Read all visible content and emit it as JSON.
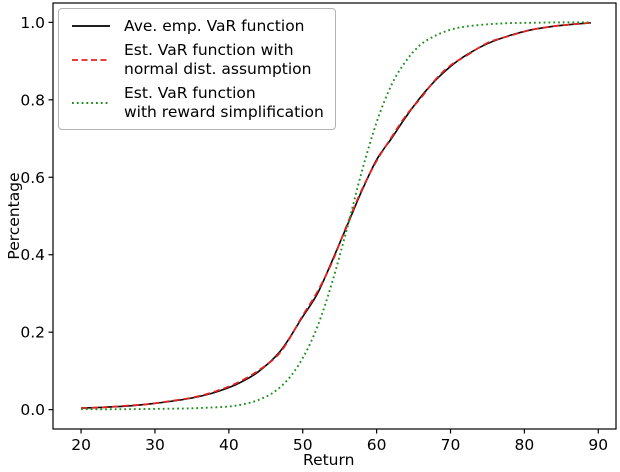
{
  "figure": {
    "background": "#ffffff",
    "frame_color": "#000000"
  },
  "chart_data": {
    "type": "line",
    "title": "",
    "xlabel": "Return",
    "ylabel": "Percentage",
    "xlim": [
      16.2,
      92.4
    ],
    "ylim": [
      -0.05,
      1.05
    ],
    "x_ticks": [
      "20",
      "30",
      "40",
      "50",
      "60",
      "70",
      "80",
      "90"
    ],
    "y_ticks": [
      "0.0",
      "0.2",
      "0.4",
      "0.6",
      "0.8",
      "1.0"
    ],
    "grid": false,
    "legend_position": "upper left",
    "series": [
      {
        "id": "ave-emp-var",
        "name": "Ave. emp. VaR function",
        "color": "#000000",
        "style": "solid",
        "points": [
          [
            20,
            0.004
          ],
          [
            23,
            0.006
          ],
          [
            26,
            0.009
          ],
          [
            29,
            0.014
          ],
          [
            32,
            0.021
          ],
          [
            35,
            0.03
          ],
          [
            38,
            0.044
          ],
          [
            41,
            0.065
          ],
          [
            44,
            0.098
          ],
          [
            47,
            0.152
          ],
          [
            50,
            0.24
          ],
          [
            52,
            0.3
          ],
          [
            54,
            0.385
          ],
          [
            56,
            0.475
          ],
          [
            58,
            0.565
          ],
          [
            60,
            0.645
          ],
          [
            62,
            0.7
          ],
          [
            64,
            0.757
          ],
          [
            66,
            0.808
          ],
          [
            68,
            0.851
          ],
          [
            70,
            0.886
          ],
          [
            72,
            0.914
          ],
          [
            75,
            0.945
          ],
          [
            78,
            0.966
          ],
          [
            81,
            0.981
          ],
          [
            84,
            0.99
          ],
          [
            86,
            0.994
          ],
          [
            89,
            0.999
          ]
        ]
      },
      {
        "id": "est-var-normal",
        "name": "Est. VaR function with normal dist. assumption",
        "color": "#e32222",
        "style": "dashed",
        "points": [
          [
            20,
            0.004
          ],
          [
            23,
            0.006
          ],
          [
            26,
            0.01
          ],
          [
            29,
            0.014
          ],
          [
            32,
            0.022
          ],
          [
            35,
            0.031
          ],
          [
            38,
            0.046
          ],
          [
            41,
            0.068
          ],
          [
            44,
            0.101
          ],
          [
            47,
            0.149
          ],
          [
            50,
            0.243
          ],
          [
            52,
            0.305
          ],
          [
            54,
            0.382
          ],
          [
            56,
            0.478
          ],
          [
            58,
            0.568
          ],
          [
            60,
            0.642
          ],
          [
            62,
            0.703
          ],
          [
            64,
            0.76
          ],
          [
            66,
            0.805
          ],
          [
            68,
            0.853
          ],
          [
            70,
            0.889
          ],
          [
            72,
            0.912
          ],
          [
            75,
            0.947
          ],
          [
            78,
            0.965
          ],
          [
            81,
            0.981
          ],
          [
            84,
            0.99
          ],
          [
            86,
            0.994
          ],
          [
            89,
            0.999
          ]
        ]
      },
      {
        "id": "est-var-reward",
        "name": "Est. VaR function with reward simplification",
        "color": "#1e8f1e",
        "style": "dotted",
        "points": [
          [
            20,
            0.001
          ],
          [
            25,
            0.001
          ],
          [
            30,
            0.002
          ],
          [
            34,
            0.003
          ],
          [
            37,
            0.005
          ],
          [
            40,
            0.008
          ],
          [
            42,
            0.014
          ],
          [
            44,
            0.025
          ],
          [
            46,
            0.044
          ],
          [
            48,
            0.078
          ],
          [
            50,
            0.133
          ],
          [
            52,
            0.215
          ],
          [
            54,
            0.33
          ],
          [
            56,
            0.468
          ],
          [
            58,
            0.615
          ],
          [
            60,
            0.742
          ],
          [
            62,
            0.838
          ],
          [
            64,
            0.901
          ],
          [
            66,
            0.943
          ],
          [
            68,
            0.966
          ],
          [
            70,
            0.981
          ],
          [
            72,
            0.989
          ],
          [
            75,
            0.995
          ],
          [
            78,
            0.998
          ],
          [
            81,
            0.999
          ],
          [
            85,
            1.0
          ],
          [
            89,
            1.0
          ]
        ]
      }
    ]
  },
  "legend": {
    "items": [
      {
        "lines": [
          "Ave. emp. VaR function"
        ]
      },
      {
        "lines": [
          "Est. VaR function with",
          "normal dist. assumption"
        ]
      },
      {
        "lines": [
          "Est. VaR function",
          "with reward simplification"
        ]
      }
    ]
  }
}
